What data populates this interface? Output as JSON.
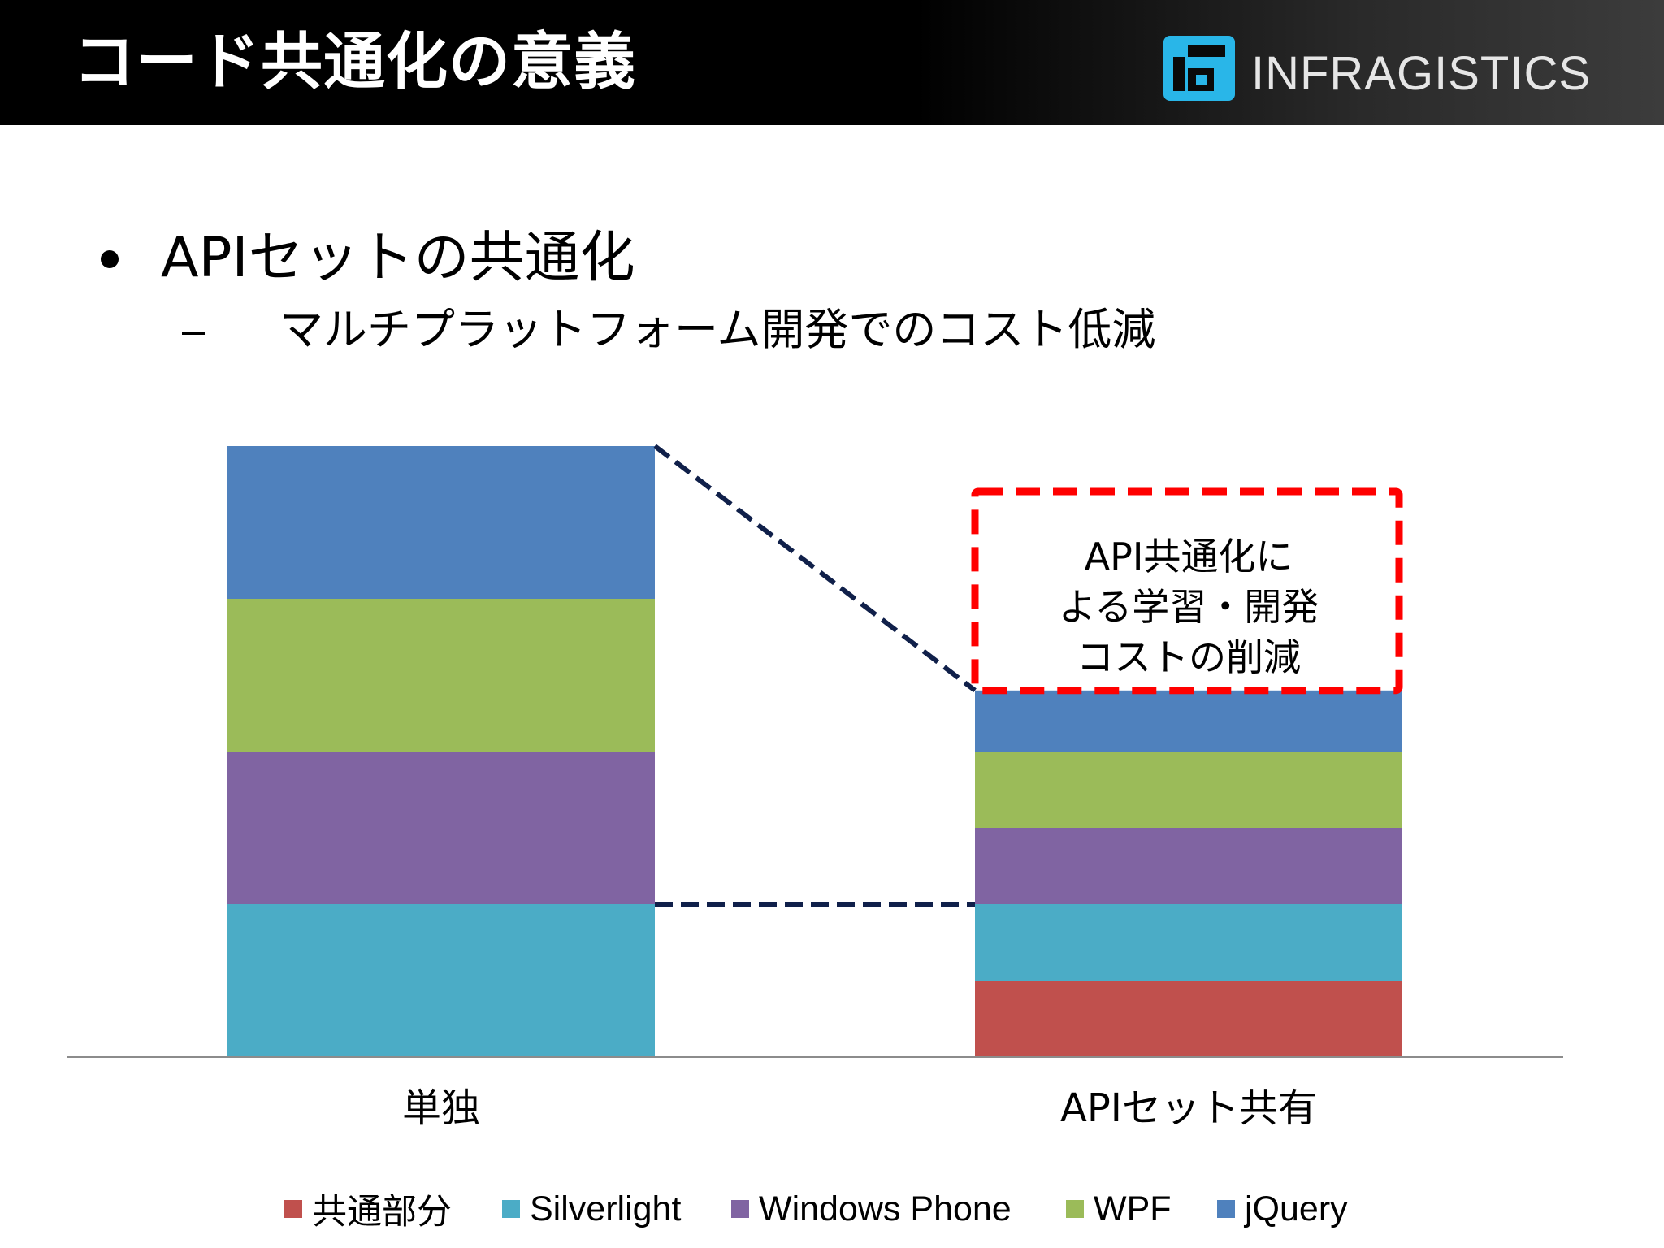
{
  "slide": {
    "title": "コード共通化の意義",
    "logo_text": "INFRAGISTICS",
    "bullet": "APIセットの共通化",
    "sub_bullet": "マルチプラットフォーム開発でのコスト低減"
  },
  "chart_data": {
    "type": "bar",
    "stacked": true,
    "title": "",
    "xlabel": "",
    "ylabel": "",
    "ylim": [
      0,
      4
    ],
    "grid": false,
    "legend_position": "bottom",
    "categories": [
      "単独",
      "APIセット共有"
    ],
    "series": [
      {
        "name": "共通部分",
        "color": "#c0504d",
        "values": [
          0,
          0.5
        ]
      },
      {
        "name": "Silverlight",
        "color": "#4bacc6",
        "values": [
          1,
          0.5
        ]
      },
      {
        "name": "Windows Phone",
        "color": "#8064a2",
        "values": [
          1,
          0.5
        ]
      },
      {
        "name": "WPF",
        "color": "#9bbb59",
        "values": [
          1,
          0.5
        ]
      },
      {
        "name": "jQuery",
        "color": "#4f81bd",
        "values": [
          1,
          0.4
        ]
      }
    ],
    "annotation": {
      "lines": [
        "API共通化に",
        "よる学習・開発",
        "コストの削減"
      ],
      "border_color": "#ff0000"
    },
    "connector_color": "#10204a"
  }
}
